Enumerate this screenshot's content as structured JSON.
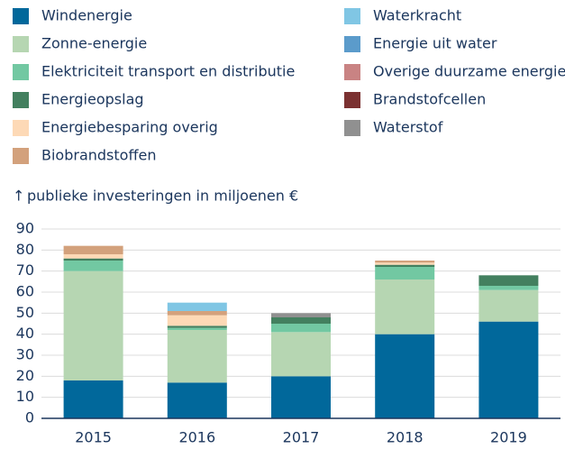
{
  "chart_data": {
    "type": "stacked_bar",
    "y_label": "publieke investeringen in miljoenen €",
    "categories": [
      "2015",
      "2016",
      "2017",
      "2018",
      "2019"
    ],
    "series": [
      {
        "name": "Windenergie",
        "color": "#01689b",
        "values": [
          18,
          17,
          20,
          40,
          46
        ]
      },
      {
        "name": "Zonne-energie",
        "color": "#b6d6b2",
        "values": [
          52,
          25,
          21,
          26,
          15
        ]
      },
      {
        "name": "Elektriciteit transport en distributie",
        "color": "#72c8a2",
        "values": [
          5,
          1,
          4,
          6,
          2
        ]
      },
      {
        "name": "Energieopslag",
        "color": "#43805f",
        "values": [
          1,
          1,
          3,
          1,
          5
        ]
      },
      {
        "name": "Energiebesparing overig",
        "color": "#fdd9b6",
        "values": [
          2,
          5,
          0,
          1,
          0
        ]
      },
      {
        "name": "Biobrandstoffen",
        "color": "#d3a17c",
        "values": [
          4,
          2,
          0,
          1,
          0
        ]
      },
      {
        "name": "Waterkracht",
        "color": "#80c6e4",
        "values": [
          0,
          4,
          0,
          0,
          0
        ]
      },
      {
        "name": "Energie uit water",
        "color": "#5b9bcb",
        "values": [
          0,
          0,
          0,
          0,
          0
        ]
      },
      {
        "name": "Overige duurzame energie",
        "color": "#c98383",
        "values": [
          0,
          0,
          0,
          0,
          0
        ]
      },
      {
        "name": "Brandstofcellen",
        "color": "#7b3131",
        "values": [
          0,
          0,
          0,
          0,
          0
        ]
      },
      {
        "name": "Waterstof",
        "color": "#909090",
        "values": [
          0,
          0,
          2,
          0,
          0
        ]
      }
    ],
    "ylim": [
      0,
      90
    ],
    "yticks": [
      0,
      10,
      20,
      30,
      40,
      50,
      60,
      70,
      80,
      90
    ],
    "grid": true
  }
}
